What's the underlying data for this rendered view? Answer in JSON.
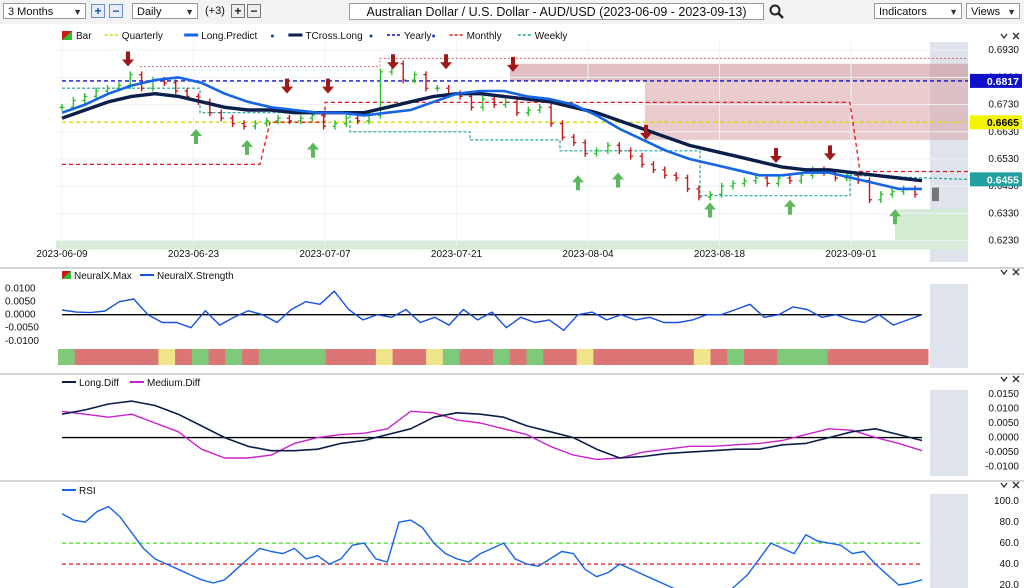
{
  "toolbar": {
    "period": "3 Months",
    "interval": "Daily",
    "overlay_count": "(+3)",
    "title": "Australian Dollar / U.S. Dollar - AUD/USD (2023-06-09 - 2023-09-13)",
    "indicators_label": "Indicators",
    "views_label": "Views",
    "icons": [
      "plus-icon",
      "minus-icon",
      "search-icon",
      "chevron-down-icon",
      "close-icon"
    ]
  },
  "colors": {
    "long_predict": "#1565e6",
    "tcross": "#0b1f4a",
    "yearly": "#1010c8",
    "monthly": "#e01818",
    "weekly": "#18a3a3",
    "quarterly": "#d9d900",
    "up_arrow": "#5cb85c",
    "down_arrow": "#a01818",
    "neural_max": "#14148c",
    "neural_strength": "#1550e0",
    "medium_diff": "#cc22cc",
    "rsi": "#1565e6",
    "rsi_hi": "#44dd22",
    "rsi_lo": "#e01818"
  },
  "chart_data": [
    {
      "type": "line",
      "panel": "price",
      "legend": [
        "Bar",
        "Quarterly",
        "Long.Predict",
        "TCross.Long",
        "Yearly",
        "Monthly",
        "Weekly"
      ],
      "x_labels": [
        "2023-06-09",
        "2023-06-23",
        "2023-07-07",
        "2023-07-21",
        "2023-08-04",
        "2023-08-18",
        "2023-09-01"
      ],
      "y_ticks": [
        "0.6930",
        "0.6830",
        "0.6730",
        "0.6630",
        "0.6530",
        "0.6430",
        "0.6330",
        "0.6230"
      ],
      "ylim": [
        0.621,
        0.696
      ],
      "price_labels": [
        {
          "text": "0.6817",
          "value": 0.6817,
          "color": "#1010c8"
        },
        {
          "text": "0.6665",
          "value": 0.6665,
          "color": "#f5f500"
        },
        {
          "text": "0.6455",
          "value": 0.6455,
          "color": "#20a0a0"
        }
      ],
      "obscured_price_label": {
        "text": "0.6484",
        "value": 0.6484,
        "color": "#e02020"
      },
      "close": [
        0.672,
        0.6745,
        0.676,
        0.678,
        0.679,
        0.68,
        0.684,
        0.679,
        0.682,
        0.681,
        0.678,
        0.676,
        0.674,
        0.67,
        0.668,
        0.666,
        0.665,
        0.666,
        0.667,
        0.668,
        0.667,
        0.668,
        0.669,
        0.665,
        0.666,
        0.668,
        0.667,
        0.669,
        0.685,
        0.688,
        0.682,
        0.684,
        0.679,
        0.679,
        0.677,
        0.676,
        0.672,
        0.675,
        0.673,
        0.674,
        0.67,
        0.671,
        0.672,
        0.666,
        0.661,
        0.659,
        0.655,
        0.656,
        0.658,
        0.656,
        0.654,
        0.651,
        0.649,
        0.647,
        0.646,
        0.642,
        0.639,
        0.64,
        0.643,
        0.644,
        0.645,
        0.646,
        0.644,
        0.646,
        0.645,
        0.647,
        0.649,
        0.648,
        0.646,
        0.647,
        0.645,
        0.638,
        0.64,
        0.641,
        0.642,
        0.64
      ],
      "long_predict": [
        0.67,
        0.673,
        0.677,
        0.68,
        0.682,
        0.683,
        0.681,
        0.677,
        0.674,
        0.672,
        0.671,
        0.67,
        0.67,
        0.669,
        0.67,
        0.671,
        0.674,
        0.677,
        0.678,
        0.678,
        0.676,
        0.675,
        0.673,
        0.669,
        0.664,
        0.66,
        0.656,
        0.653,
        0.651,
        0.649,
        0.647,
        0.647,
        0.648,
        0.648,
        0.646,
        0.644,
        0.642,
        0.642
      ],
      "tcross_long": [
        0.668,
        0.671,
        0.674,
        0.676,
        0.677,
        0.676,
        0.674,
        0.672,
        0.671,
        0.671,
        0.67,
        0.67,
        0.67,
        0.67,
        0.672,
        0.674,
        0.676,
        0.677,
        0.677,
        0.676,
        0.675,
        0.674,
        0.672,
        0.67,
        0.667,
        0.664,
        0.661,
        0.658,
        0.656,
        0.654,
        0.652,
        0.65,
        0.649,
        0.649,
        0.648,
        0.647,
        0.646,
        0.645
      ],
      "levels": {
        "yearly": 0.6817,
        "quarterly": 0.6665,
        "monthly_upper": 0.6738,
        "monthly_lower": 0.651,
        "monthly_current": 0.6484,
        "weekly_current": 0.6455
      }
    },
    {
      "type": "line",
      "panel": "neuralx",
      "legend": [
        "NeuralX.Max",
        "NeuralX.Strength"
      ],
      "y_ticks": [
        "0.0100",
        "0.0050",
        "0.0000",
        "-0.0050",
        "-0.0100"
      ],
      "ylim": [
        -0.012,
        0.011
      ],
      "strength": [
        0.0018,
        0.001,
        0.0008,
        0.0014,
        0.005,
        0.006,
        0.0,
        -0.003,
        -0.003,
        -0.005,
        0.0015,
        -0.004,
        -0.001,
        0.0015,
        0.0,
        -0.003,
        0.002,
        0.005,
        0.004,
        0.009,
        0.002,
        -0.002,
        0.0,
        -0.001,
        0.002,
        -0.003,
        -0.001,
        -0.004,
        0.002,
        -0.002,
        0.001,
        -0.005,
        -0.001,
        -0.003,
        -0.002,
        -0.006,
        0.0,
        0.001,
        -0.002,
        0.0,
        -0.002,
        -0.001,
        -0.003,
        -0.003,
        -0.002,
        0.0,
        0.0,
        0.002,
        0.004,
        -0.001,
        0.0,
        0.003,
        0.002,
        -0.001,
        0.0,
        -0.002,
        -0.003,
        0.0,
        -0.004,
        -0.002,
        0.0
      ],
      "zero_line": 0.0,
      "signal_bar": [
        "g",
        "r",
        "r",
        "r",
        "r",
        "r",
        "y",
        "r",
        "g",
        "r",
        "g",
        "r",
        "g",
        "g",
        "g",
        "g",
        "r",
        "r",
        "r",
        "y",
        "r",
        "r",
        "y",
        "g",
        "r",
        "r",
        "g",
        "r",
        "g",
        "r",
        "r",
        "y",
        "r",
        "r",
        "r",
        "r",
        "r",
        "r",
        "y",
        "r",
        "g",
        "r",
        "r",
        "g",
        "g",
        "g",
        "r",
        "r",
        "r",
        "r",
        "r",
        "r"
      ]
    },
    {
      "type": "line",
      "panel": "diff",
      "legend": [
        "Long.Diff",
        "Medium.Diff"
      ],
      "y_ticks": [
        "0.0150",
        "0.0100",
        "0.0050",
        "0.0000",
        "-0.0050",
        "-0.0100"
      ],
      "ylim": [
        -0.0125,
        0.017
      ],
      "long_diff": [
        0.008,
        0.0095,
        0.0115,
        0.0125,
        0.011,
        0.008,
        0.004,
        0.0,
        -0.003,
        -0.0045,
        -0.0045,
        -0.004,
        -0.002,
        -0.001,
        0.001,
        0.003,
        0.007,
        0.0085,
        0.008,
        0.007,
        0.004,
        0.002,
        0.0,
        -0.004,
        -0.007,
        -0.0065,
        -0.0055,
        -0.005,
        -0.0045,
        -0.004,
        -0.004,
        -0.0025,
        -0.002,
        0.0,
        0.002,
        0.003,
        0.001,
        -0.001
      ],
      "medium_diff": [
        0.009,
        0.008,
        0.007,
        0.008,
        0.005,
        0.002,
        -0.004,
        -0.007,
        -0.007,
        -0.006,
        -0.002,
        0.0,
        0.001,
        0.0015,
        0.003,
        0.009,
        0.0085,
        0.006,
        0.005,
        0.003,
        0.001,
        -0.003,
        -0.006,
        -0.0075,
        -0.007,
        -0.005,
        -0.004,
        -0.003,
        -0.003,
        -0.0025,
        -0.002,
        -0.001,
        0.001,
        0.003,
        0.0025,
        0.0,
        -0.002,
        -0.0045
      ],
      "zero_line": 0.0
    },
    {
      "type": "line",
      "panel": "rsi",
      "legend": [
        "RSI"
      ],
      "y_ticks": [
        "100.0",
        "80.0",
        "60.0",
        "40.0",
        "20.0",
        "0.0"
      ],
      "ylim": [
        0,
        105
      ],
      "overbought": 60,
      "oversold": 40,
      "rsi": [
        88,
        82,
        80,
        90,
        95,
        85,
        70,
        55,
        45,
        40,
        35,
        30,
        25,
        22,
        25,
        35,
        45,
        55,
        52,
        50,
        55,
        45,
        48,
        40,
        45,
        58,
        60,
        45,
        42,
        80,
        82,
        75,
        60,
        50,
        45,
        42,
        50,
        55,
        60,
        45,
        40,
        38,
        45,
        52,
        50,
        35,
        28,
        32,
        40,
        35,
        30,
        25,
        20,
        15,
        12,
        10,
        8,
        10,
        20,
        30,
        45,
        60,
        55,
        50,
        68,
        62,
        60,
        58,
        50,
        52,
        40,
        30,
        20,
        22,
        25
      ],
      "y_last": 25
    }
  ]
}
